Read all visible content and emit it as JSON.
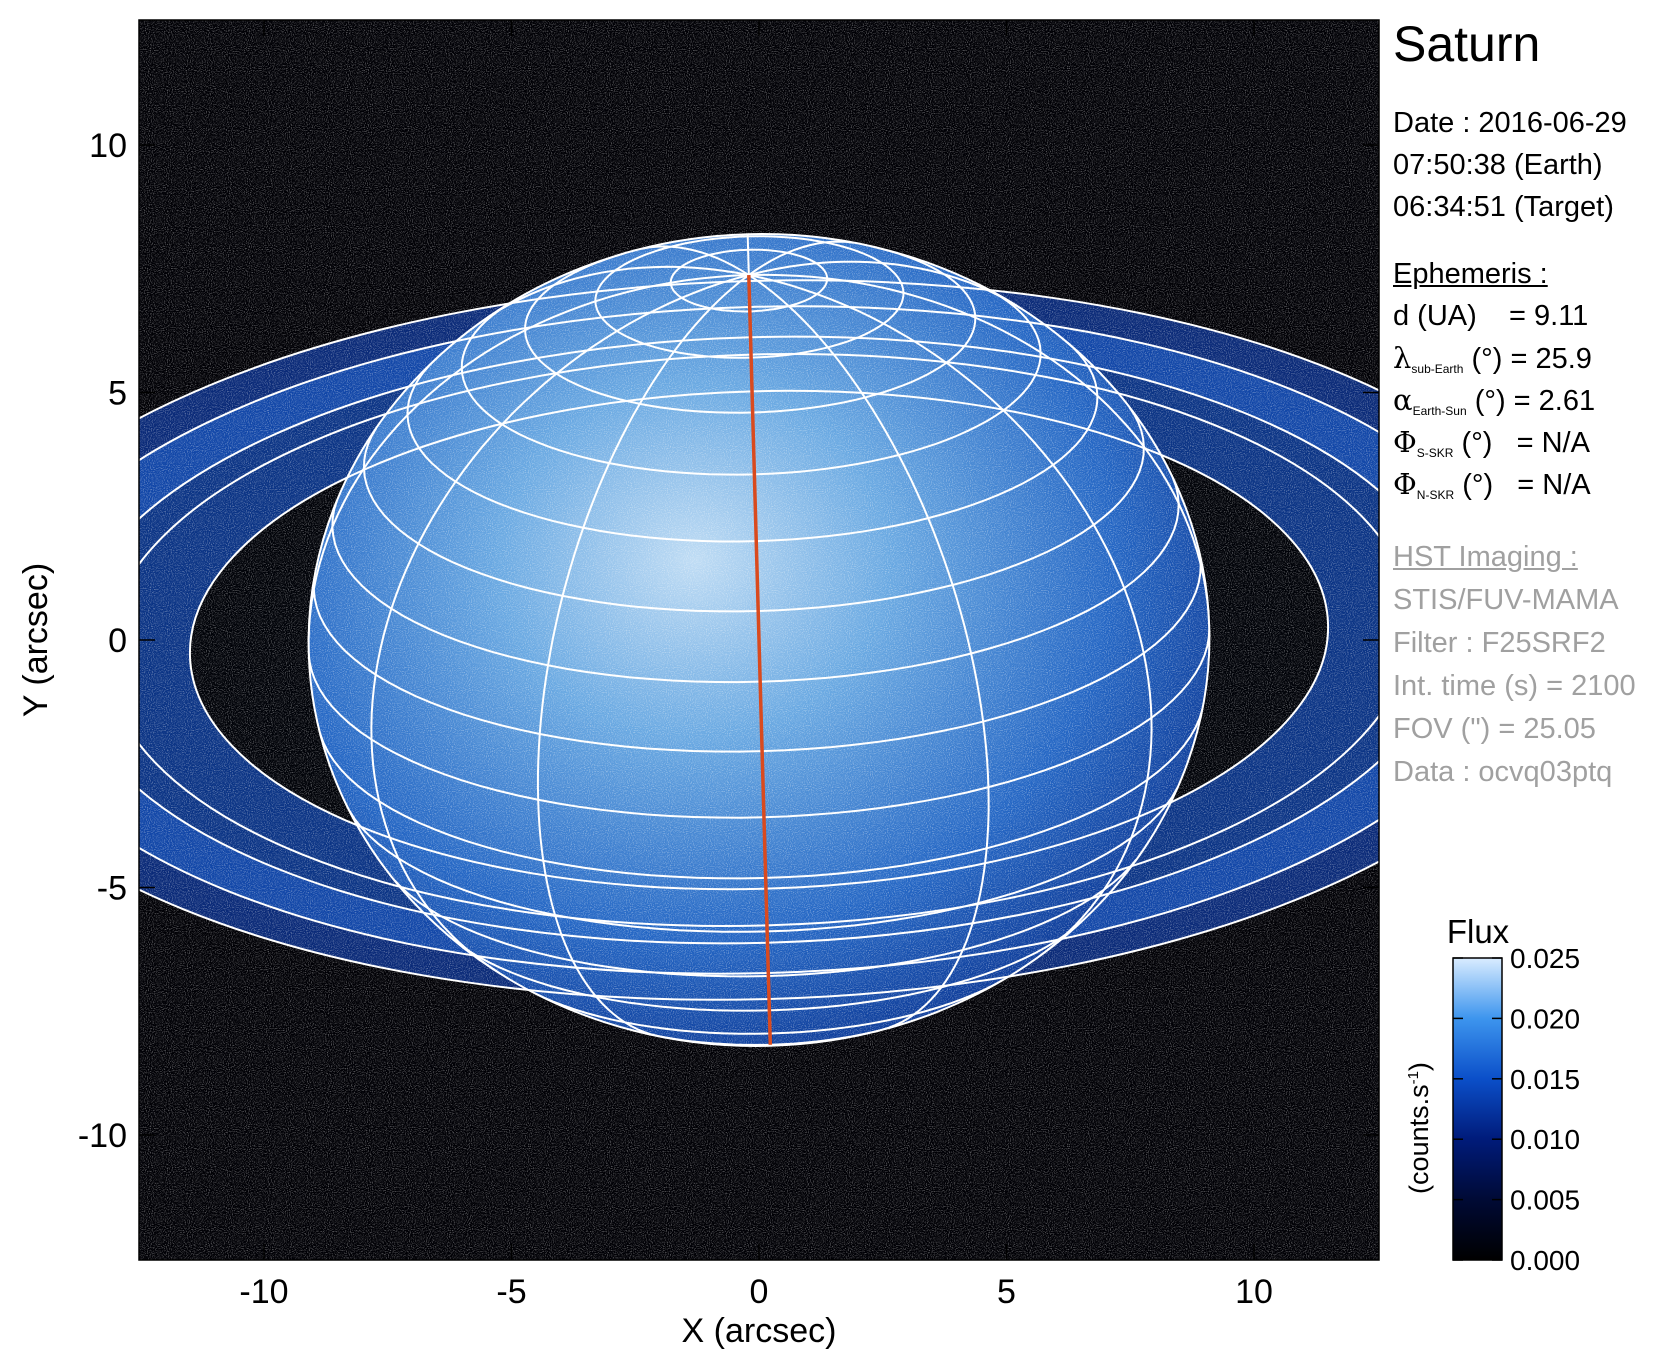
{
  "header": {
    "title": "Saturn"
  },
  "observation": {
    "date": "Date : 2016-06-29",
    "time_earth": "07:50:38 (Earth)",
    "time_target": "06:34:51 (Target)"
  },
  "ephemeris": {
    "heading": "Ephemeris :",
    "distance": {
      "label": "d (UA)",
      "value": "= 9.11"
    },
    "lambda": {
      "symbol": "λ",
      "sub": "sub-Earth",
      "unit": "(°)",
      "value": "= 25.9"
    },
    "alpha": {
      "symbol": "α",
      "sub": "Earth-Sun",
      "unit": "(°)",
      "value": "= 2.61"
    },
    "phi_s": {
      "symbol": "Φ",
      "sub": "S-SKR",
      "unit": "(°)",
      "value": "= N/A"
    },
    "phi_n": {
      "symbol": "Φ",
      "sub": "N-SKR",
      "unit": "(°)",
      "value": "= N/A"
    }
  },
  "imaging": {
    "heading": "HST Imaging :",
    "instrument": "STIS/FUV-MAMA",
    "filter": "Filter : F25SRF2",
    "int_time": "Int. time (s) = 2100",
    "fov": "FOV (\") = 25.05",
    "data": "Data : ocvq03ptq"
  },
  "chart_data": {
    "type": "heatmap",
    "xlabel": "X (arcsec)",
    "ylabel": "Y (arcsec)",
    "xlim": [
      -12.525,
      12.525
    ],
    "ylim": [
      -12.525,
      12.525
    ],
    "x_ticks": [
      -10,
      -5,
      0,
      5,
      10
    ],
    "y_ticks": [
      -10,
      -5,
      0,
      5,
      10
    ],
    "x_tick_labels": [
      "-10",
      "-5",
      "0",
      "5",
      "10"
    ],
    "y_tick_labels": [
      "-10",
      "-5",
      "0",
      "5",
      "10"
    ],
    "colorbar": {
      "title": "Flux",
      "unit_label": "(counts.s",
      "unit_exp": "-1",
      "unit_close": ")",
      "range": [
        0.0,
        0.025
      ],
      "ticks": [
        0.0,
        0.005,
        0.01,
        0.015,
        0.02,
        0.025
      ],
      "tick_labels": [
        "0.000",
        "0.005",
        "0.010",
        "0.015",
        "0.020",
        "0.025"
      ],
      "colors": [
        "#000000",
        "#000a35",
        "#001b7a",
        "#0b4fc9",
        "#3d95ee",
        "#d9ecff"
      ]
    },
    "planet": {
      "equatorial_radius_arcsec": 9.1,
      "polar_radius_arcsec": 8.2,
      "sub_earth_latitude_deg": 25.9,
      "meridian_tilt_deg": 1.6,
      "grid_color": "#ffffff",
      "central_meridian_color": "#d94a1e"
    },
    "rings": {
      "axis_ratio": 0.437,
      "semi_major_axes_arcsec": [
        11.5,
        13.2,
        14.0,
        15.4,
        16.6
      ],
      "color": "#ffffff"
    }
  }
}
